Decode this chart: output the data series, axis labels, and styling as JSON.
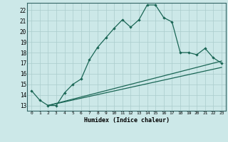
{
  "xlabel": "Humidex (Indice chaleur)",
  "bg_color": "#cce8e8",
  "grid_color": "#aacccc",
  "line_color": "#1a6655",
  "xlim": [
    -0.5,
    23.5
  ],
  "ylim": [
    12.5,
    22.7
  ],
  "xticks": [
    0,
    1,
    2,
    3,
    4,
    5,
    6,
    7,
    8,
    9,
    10,
    11,
    12,
    13,
    14,
    15,
    16,
    17,
    18,
    19,
    20,
    21,
    22,
    23
  ],
  "yticks": [
    13,
    14,
    15,
    16,
    17,
    18,
    19,
    20,
    21,
    22
  ],
  "line1_x": [
    0,
    1,
    2,
    3,
    4,
    5,
    6,
    7,
    8,
    9,
    10,
    11,
    12,
    13,
    14,
    15,
    16,
    17,
    18,
    19,
    20,
    21,
    22,
    23
  ],
  "line1_y": [
    14.4,
    13.5,
    13.0,
    13.0,
    14.2,
    15.0,
    15.5,
    17.3,
    18.5,
    19.4,
    20.3,
    21.1,
    20.4,
    21.1,
    22.5,
    22.5,
    21.3,
    20.9,
    18.0,
    18.0,
    17.8,
    18.4,
    17.5,
    17.0
  ],
  "line2_x": [
    2,
    23
  ],
  "line2_y": [
    13.0,
    17.2
  ],
  "line3_x": [
    2,
    23
  ],
  "line3_y": [
    13.0,
    16.6
  ]
}
